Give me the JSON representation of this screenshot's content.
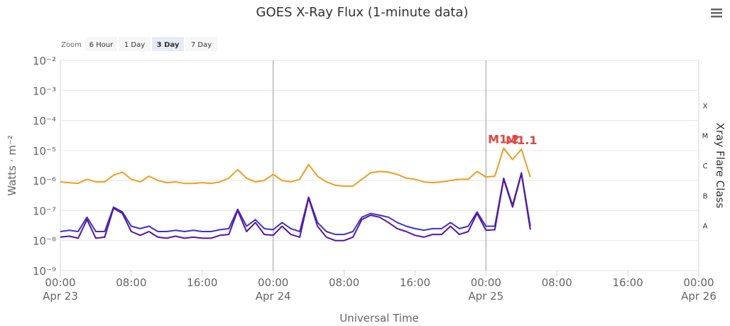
{
  "chart_data": {
    "type": "line",
    "title": "GOES X-Ray Flux (1-minute data)",
    "x_label": "Universal Time",
    "y_label": "Watts · m⁻²",
    "y2_label": "Xray Flare Class",
    "zoom": {
      "label": "Zoom",
      "buttons": [
        "6 Hour",
        "1 Day",
        "3 Day",
        "7 Day"
      ],
      "active": "3 Day"
    },
    "log_y": true,
    "grid": true,
    "ylim": [
      1e-09,
      0.01
    ],
    "yticks": [
      {
        "value": 1e-09,
        "label": "10⁻⁹"
      },
      {
        "value": 1e-08,
        "label": "10⁻⁸"
      },
      {
        "value": 1e-07,
        "label": "10⁻⁷"
      },
      {
        "value": 1e-06,
        "label": "10⁻⁶"
      },
      {
        "value": 1e-05,
        "label": "10⁻⁵"
      },
      {
        "value": 0.0001,
        "label": "10⁻⁴"
      },
      {
        "value": 0.001,
        "label": "10⁻³"
      },
      {
        "value": 0.01,
        "label": "10⁻²"
      }
    ],
    "flare_classes": [
      {
        "value": 1e-08,
        "label": "A"
      },
      {
        "value": 1e-07,
        "label": "B"
      },
      {
        "value": 1e-06,
        "label": "C"
      },
      {
        "value": 1e-05,
        "label": "M"
      },
      {
        "value": 0.0001,
        "label": "X"
      }
    ],
    "xlim": [
      "Apr 23 00:00",
      "Apr 26 00:00"
    ],
    "xticks": [
      {
        "value": "Apr 23 00:00",
        "label": [
          "00:00",
          "Apr 23"
        ]
      },
      {
        "value": "Apr 23 08:00",
        "label": [
          "08:00"
        ]
      },
      {
        "value": "Apr 23 16:00",
        "label": [
          "16:00"
        ]
      },
      {
        "value": "Apr 24 00:00",
        "label": [
          "00:00",
          "Apr 24"
        ]
      },
      {
        "value": "Apr 24 08:00",
        "label": [
          "08:00"
        ]
      },
      {
        "value": "Apr 24 16:00",
        "label": [
          "16:00"
        ]
      },
      {
        "value": "Apr 25 00:00",
        "label": [
          "00:00",
          "Apr 25"
        ]
      },
      {
        "value": "Apr 25 08:00",
        "label": [
          "08:00"
        ]
      },
      {
        "value": "Apr 25 16:00",
        "label": [
          "16:00"
        ]
      },
      {
        "value": "Apr 26 00:00",
        "label": [
          "00:00",
          "Apr 26"
        ]
      }
    ],
    "x": [
      "Apr 23 00:00",
      "Apr 23 01:00",
      "Apr 23 02:00",
      "Apr 23 03:00",
      "Apr 23 04:00",
      "Apr 23 05:00",
      "Apr 23 06:00",
      "Apr 23 07:00",
      "Apr 23 08:00",
      "Apr 23 09:00",
      "Apr 23 10:00",
      "Apr 23 11:00",
      "Apr 23 12:00",
      "Apr 23 13:00",
      "Apr 23 14:00",
      "Apr 23 15:00",
      "Apr 23 16:00",
      "Apr 23 17:00",
      "Apr 23 18:00",
      "Apr 23 19:00",
      "Apr 23 20:00",
      "Apr 23 21:00",
      "Apr 23 22:00",
      "Apr 23 23:00",
      "Apr 24 00:00",
      "Apr 24 01:00",
      "Apr 24 02:00",
      "Apr 24 03:00",
      "Apr 24 04:00",
      "Apr 24 05:00",
      "Apr 24 06:00",
      "Apr 24 07:00",
      "Apr 24 08:00",
      "Apr 24 09:00",
      "Apr 24 10:00",
      "Apr 24 11:00",
      "Apr 24 12:00",
      "Apr 24 13:00",
      "Apr 24 14:00",
      "Apr 24 15:00",
      "Apr 24 16:00",
      "Apr 24 17:00",
      "Apr 24 18:00",
      "Apr 24 19:00",
      "Apr 24 20:00",
      "Apr 24 21:00",
      "Apr 24 22:00",
      "Apr 24 23:00",
      "Apr 25 00:00",
      "Apr 25 01:00",
      "Apr 25 02:00",
      "Apr 25 03:00",
      "Apr 25 04:00",
      "Apr 25 05:00"
    ],
    "series": [
      {
        "color": "#f59c1a",
        "values": [
          9e-07,
          8.5e-07,
          8e-07,
          1.1e-06,
          9e-07,
          9e-07,
          1.5e-06,
          1.9e-06,
          1.1e-06,
          9e-07,
          1.4e-06,
          1e-06,
          8.5e-07,
          9e-07,
          8e-07,
          8e-07,
          8.5e-07,
          8e-07,
          9e-07,
          1.2e-06,
          2.3e-06,
          1.2e-06,
          9e-07,
          1e-06,
          1.6e-06,
          1e-06,
          9e-07,
          1.1e-06,
          3.4e-06,
          1.4e-06,
          9e-07,
          7e-07,
          6.5e-07,
          6.5e-07,
          1.1e-06,
          1.8e-06,
          2e-06,
          1.9e-06,
          1.6e-06,
          1.2e-06,
          1.1e-06,
          9e-07,
          8.5e-07,
          9e-07,
          1e-06,
          1.1e-06,
          1.1e-06,
          2e-06,
          1.3e-06,
          1.4e-06,
          1.2e-05,
          5e-06,
          1.1e-05,
          1.3e-06
        ]
      },
      {
        "color": "#3a33cf",
        "values": [
          2e-08,
          2.2e-08,
          2e-08,
          6e-08,
          2e-08,
          2e-08,
          1.3e-07,
          9e-08,
          3e-08,
          2.5e-08,
          3e-08,
          2e-08,
          2e-08,
          2.2e-08,
          2e-08,
          2.2e-08,
          2e-08,
          2e-08,
          2.3e-08,
          2.5e-08,
          1.1e-07,
          3e-08,
          5e-08,
          2.5e-08,
          2.3e-08,
          4e-08,
          2.5e-08,
          2e-08,
          2.8e-07,
          4e-08,
          2e-08,
          1.6e-08,
          1.6e-08,
          2e-08,
          6e-08,
          8e-08,
          7e-08,
          6e-08,
          4e-08,
          3e-08,
          2.5e-08,
          2.2e-08,
          2.5e-08,
          2.5e-08,
          4e-08,
          2.5e-08,
          3e-08,
          9e-08,
          3e-08,
          3e-08,
          1.2e-06,
          1.5e-07,
          1.8e-06,
          3e-08
        ]
      },
      {
        "color": "#5b12a6",
        "values": [
          1.3e-08,
          1.4e-08,
          1.2e-08,
          5e-08,
          1.2e-08,
          1.3e-08,
          1.2e-07,
          8e-08,
          2e-08,
          1.5e-08,
          2e-08,
          1.3e-08,
          1.2e-08,
          1.4e-08,
          1.2e-08,
          1.3e-08,
          1.2e-08,
          1.2e-08,
          1.5e-08,
          1.6e-08,
          1e-07,
          2e-08,
          4e-08,
          1.6e-08,
          1.5e-08,
          3e-08,
          1.6e-08,
          1.3e-08,
          2.6e-07,
          3e-08,
          1.3e-08,
          1e-08,
          1e-08,
          1.3e-08,
          5e-08,
          7e-08,
          6e-08,
          4e-08,
          2.5e-08,
          2e-08,
          1.5e-08,
          1.3e-08,
          1.6e-08,
          1.6e-08,
          3e-08,
          1.6e-08,
          2e-08,
          8e-08,
          2.2e-08,
          2.3e-08,
          1.1e-06,
          1.3e-07,
          1.7e-06,
          2.3e-08
        ]
      }
    ],
    "annotations": [
      {
        "text": "M1.2",
        "x": "Apr 25 02:00",
        "y": 1.2e-05,
        "color": "#e8413c"
      },
      {
        "text": "M1.1",
        "x": "Apr 25 04:00",
        "y": 1.1e-05,
        "color": "#e8413c"
      }
    ]
  }
}
